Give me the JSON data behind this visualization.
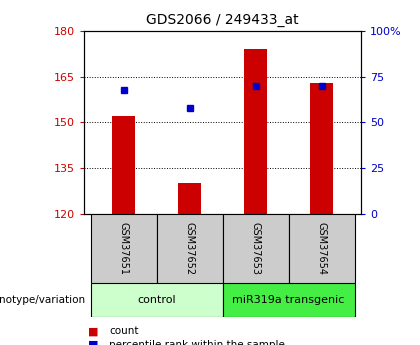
{
  "title": "GDS2066 / 249433_at",
  "samples": [
    "GSM37651",
    "GSM37652",
    "GSM37653",
    "GSM37654"
  ],
  "bar_values": [
    152,
    130,
    174,
    163
  ],
  "bar_bottom": 120,
  "percentile_ranks": [
    68,
    58,
    70,
    70
  ],
  "bar_color": "#cc0000",
  "dot_color": "#0000cc",
  "ylim_left": [
    120,
    180
  ],
  "ylim_right": [
    0,
    100
  ],
  "yticks_left": [
    120,
    135,
    150,
    165,
    180
  ],
  "yticks_right": [
    0,
    25,
    50,
    75,
    100
  ],
  "ytick_labels_right": [
    "0",
    "25",
    "50",
    "75",
    "100%"
  ],
  "groups": [
    {
      "label": "control",
      "samples": [
        0,
        1
      ],
      "color": "#ccffcc"
    },
    {
      "label": "miR319a transgenic",
      "samples": [
        2,
        3
      ],
      "color": "#44ee44"
    }
  ],
  "genotype_label": "genotype/variation",
  "legend_count_label": "count",
  "legend_pct_label": "percentile rank within the sample",
  "bar_width": 0.35,
  "label_color_left": "#cc0000",
  "label_color_right": "#0000cc",
  "sample_box_color": "#cccccc",
  "tick_fontsize": 8,
  "title_fontsize": 10
}
